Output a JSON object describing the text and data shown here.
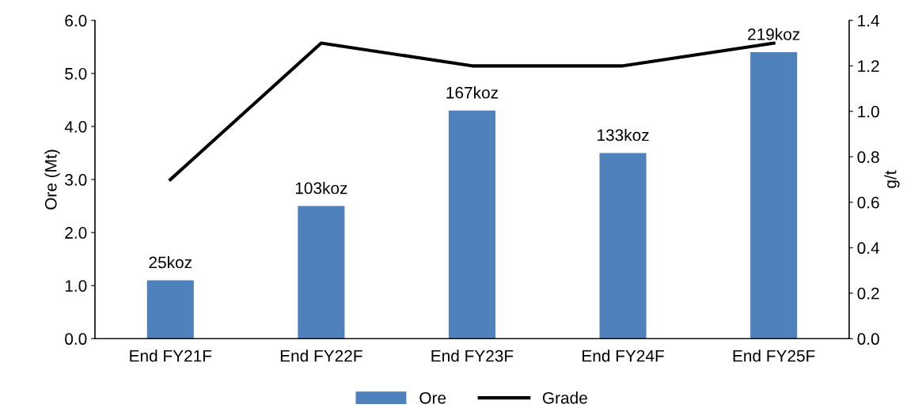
{
  "chart_data": {
    "type": "bar",
    "categories": [
      "End FY21F",
      "End FY22F",
      "End FY23F",
      "End FY24F",
      "End FY25F"
    ],
    "ylabel": "Ore (Mt)",
    "y2label": "g/t",
    "series": [
      {
        "name": "Ore",
        "color": "#4f81bd",
        "values": [
          1.1,
          2.5,
          4.3,
          3.5,
          5.4
        ]
      },
      {
        "name": "Grade",
        "type": "line",
        "axis": "y2",
        "color": "#000000",
        "values": [
          0.7,
          1.3,
          1.2,
          1.2,
          1.3
        ]
      }
    ],
    "ylim": [
      0,
      6
    ],
    "yticks": [
      {
        "value": 0,
        "label": "0.0"
      },
      {
        "value": 1,
        "label": "1.0"
      },
      {
        "value": 2,
        "label": "2.0"
      },
      {
        "value": 3,
        "label": "3.0"
      },
      {
        "value": 4,
        "label": "4.0"
      },
      {
        "value": 5,
        "label": "5.0"
      },
      {
        "value": 6,
        "label": "6.0"
      }
    ],
    "y2lim": [
      0,
      1.4
    ],
    "y2ticks": [
      {
        "value": 0,
        "label": "0.0"
      },
      0.2,
      0.4,
      0.6,
      0.8,
      {
        "value": 1,
        "label": "1.0"
      },
      1.2,
      1.4
    ],
    "annotations": [
      {
        "text": "25koz",
        "x": "End FY21F",
        "y": 1.1
      },
      {
        "text": "103koz",
        "x": "End FY22F",
        "y": 2.5
      },
      {
        "text": "167koz",
        "x": "End FY23F",
        "y": 4.3
      },
      {
        "text": "133koz",
        "x": "End FY24F",
        "y": 3.5
      },
      {
        "text": "219koz",
        "x": "End FY25F",
        "y": 5.4
      }
    ],
    "legend": "bottom",
    "grid": false,
    "marker": "none",
    "line_style": "solid"
  }
}
